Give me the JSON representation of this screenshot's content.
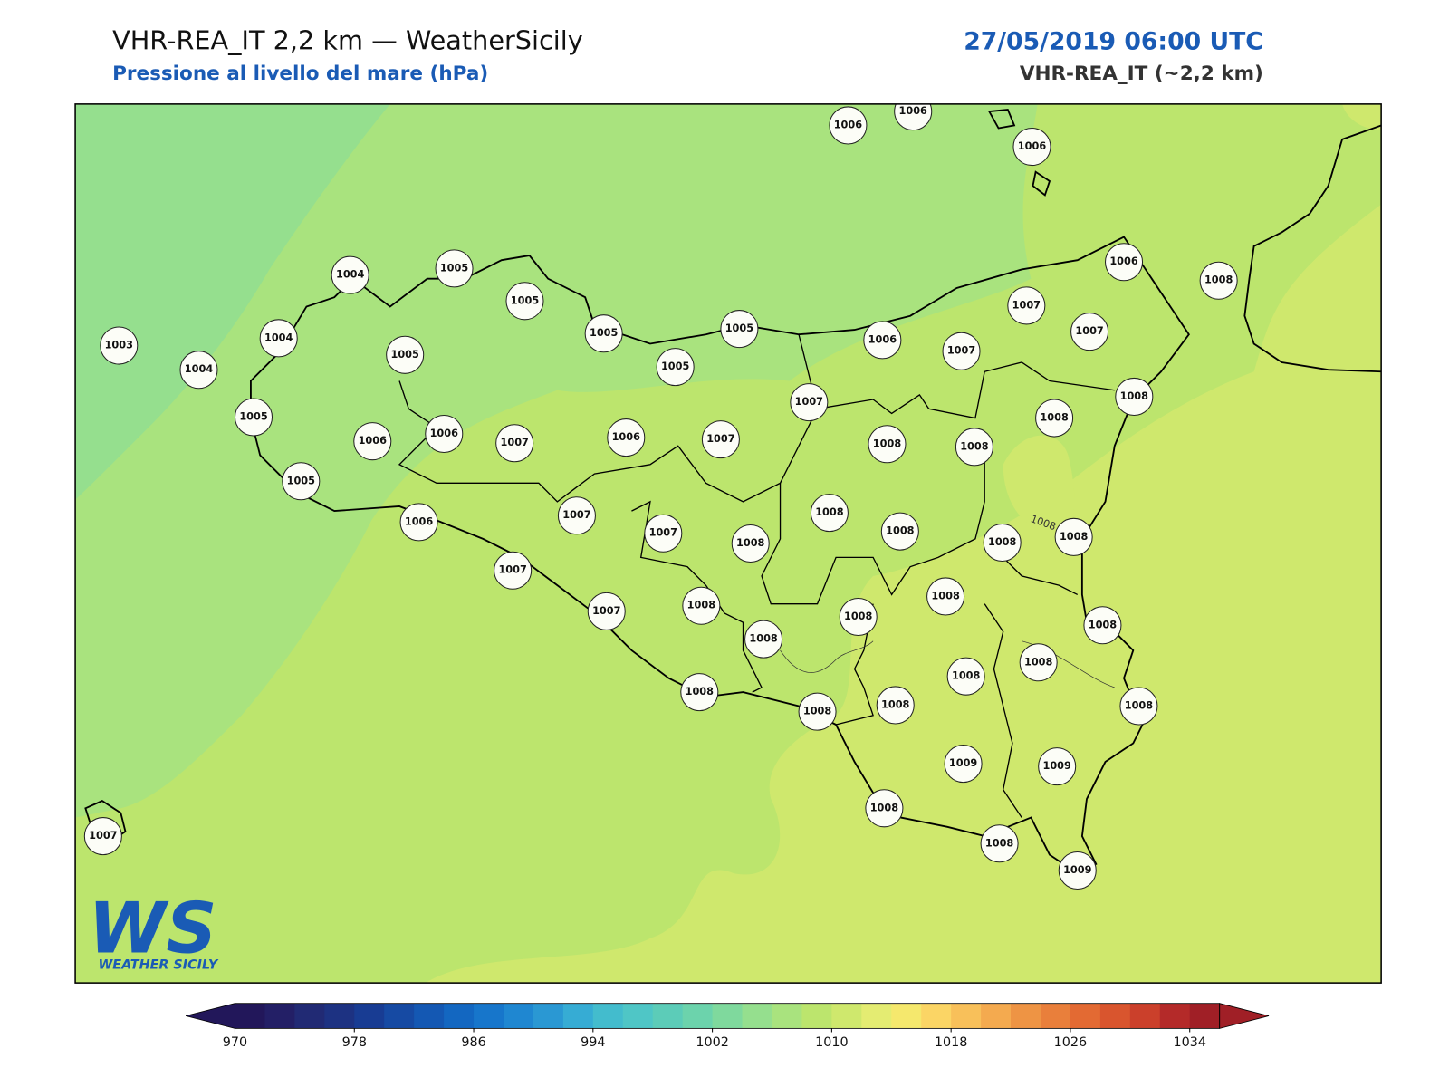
{
  "header": {
    "title": "VHR-REA_IT 2,2 km — WeatherSicily",
    "subtitle": "Pressione al livello del mare (hPa)",
    "datetime": "27/05/2019 06:00 UTC",
    "model": "VHR-REA_IT (~2,2 km)"
  },
  "map": {
    "stations": [
      1006,
      1006,
      1006,
      1004,
      1005,
      1005,
      1006,
      1008,
      1003,
      1004,
      1004,
      1005,
      1005,
      1005,
      1005,
      1006,
      1007,
      1007,
      1007,
      1008,
      1007,
      1008,
      1005,
      1006,
      1006,
      1007,
      1006,
      1007,
      1008,
      1008,
      1005,
      1008,
      1007,
      1006,
      1007,
      1008,
      1008,
      1008,
      1008,
      1007,
      1008,
      1007,
      1008,
      1008,
      1008,
      1008,
      1008,
      1008,
      1008,
      1008,
      1008,
      1008,
      1009,
      1009,
      1008,
      1008,
      1009,
      1007
    ],
    "contour_label": "1008"
  },
  "logo": {
    "mark": "WS",
    "text": "WEATHER SICILY"
  },
  "colorbar": {
    "range": [
      970,
      1036
    ],
    "ticks": [
      970,
      978,
      986,
      994,
      1002,
      1010,
      1018,
      1026,
      1034
    ],
    "colors": [
      "#22175a",
      "#231f66",
      "#212a74",
      "#1d3282",
      "#183c93",
      "#164aa3",
      "#1458b3",
      "#1367c1",
      "#1776cb",
      "#1f87d1",
      "#2a98d3",
      "#36acd4",
      "#43bccd",
      "#4fc6c6",
      "#5cccb8",
      "#6cd3ac",
      "#7fd99d",
      "#95df8e",
      "#a9e37e",
      "#bce56d",
      "#cfe86d",
      "#e4ec72",
      "#f5e86d",
      "#fbd565",
      "#f8c05a",
      "#f4aa4f",
      "#ee9444",
      "#e97f3b",
      "#e36a33",
      "#d9552e",
      "#cb402b",
      "#b42a29",
      "#a01f26"
    ]
  }
}
